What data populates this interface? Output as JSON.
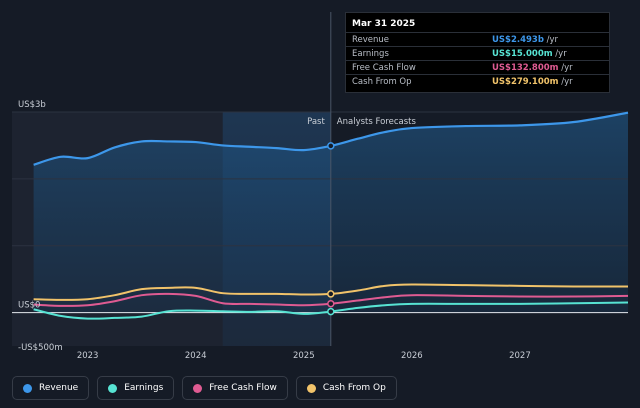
{
  "colors": {
    "background": "#151b26",
    "past_shade": "#1d2330",
    "revenue": "#3d97ea",
    "earnings": "#57e3d3",
    "fcf": "#df5b92",
    "cfo": "#f1c36a"
  },
  "tooltip": {
    "date": "Mar 31 2025",
    "rows": [
      {
        "label": "Revenue",
        "value": "US$2.493b",
        "unit": " /yr",
        "color": "#3d97ea"
      },
      {
        "label": "Earnings",
        "value": "US$15.000m",
        "unit": " /yr",
        "color": "#57e3d3"
      },
      {
        "label": "Free Cash Flow",
        "value": "US$132.800m",
        "unit": " /yr",
        "color": "#df5b92"
      },
      {
        "label": "Cash From Op",
        "value": "US$279.100m",
        "unit": " /yr",
        "color": "#f1c36a"
      }
    ]
  },
  "chart_data": {
    "type": "line",
    "xlim": [
      2022.3,
      2028.0
    ],
    "ylim": [
      -500,
      3000
    ],
    "x_ticks": [
      2023,
      2024,
      2025,
      2026,
      2027
    ],
    "x_tick_labels": [
      "2023",
      "2024",
      "2025",
      "2026",
      "2027"
    ],
    "y_labels": [
      {
        "value": 3000,
        "text": "US$3b"
      },
      {
        "value": 0,
        "text": "US$0"
      },
      {
        "value": -500,
        "text": "-US$500m"
      }
    ],
    "divider_x": 2025.25,
    "divider_labels": {
      "past": "Past",
      "forecast": "Analysts Forecasts"
    },
    "highlight_range": [
      2024.25,
      2025.25
    ],
    "series": [
      {
        "name": "Revenue",
        "key": "revenue",
        "values": [
          [
            2022.5,
            2210
          ],
          [
            2022.75,
            2330
          ],
          [
            2023.0,
            2310
          ],
          [
            2023.25,
            2470
          ],
          [
            2023.5,
            2560
          ],
          [
            2023.75,
            2560
          ],
          [
            2024.0,
            2550
          ],
          [
            2024.25,
            2500
          ],
          [
            2024.5,
            2480
          ],
          [
            2024.75,
            2460
          ],
          [
            2025.0,
            2430
          ],
          [
            2025.25,
            2493
          ],
          [
            2025.5,
            2600
          ],
          [
            2025.75,
            2700
          ],
          [
            2026.0,
            2760
          ],
          [
            2026.5,
            2790
          ],
          [
            2027.0,
            2800
          ],
          [
            2027.5,
            2850
          ],
          [
            2028.0,
            2990
          ]
        ]
      },
      {
        "name": "Earnings",
        "key": "earnings",
        "values": [
          [
            2022.5,
            50
          ],
          [
            2022.75,
            -50
          ],
          [
            2023.0,
            -90
          ],
          [
            2023.25,
            -80
          ],
          [
            2023.5,
            -60
          ],
          [
            2023.75,
            20
          ],
          [
            2024.0,
            30
          ],
          [
            2024.25,
            20
          ],
          [
            2024.5,
            10
          ],
          [
            2024.75,
            20
          ],
          [
            2025.0,
            -20
          ],
          [
            2025.25,
            15
          ],
          [
            2025.5,
            70
          ],
          [
            2025.75,
            110
          ],
          [
            2026.0,
            130
          ],
          [
            2026.5,
            130
          ],
          [
            2027.0,
            130
          ],
          [
            2027.5,
            140
          ],
          [
            2028.0,
            150
          ]
        ]
      },
      {
        "name": "Free Cash Flow",
        "key": "fcf",
        "values": [
          [
            2022.5,
            120
          ],
          [
            2022.75,
            100
          ],
          [
            2023.0,
            110
          ],
          [
            2023.25,
            170
          ],
          [
            2023.5,
            260
          ],
          [
            2023.75,
            280
          ],
          [
            2024.0,
            250
          ],
          [
            2024.25,
            140
          ],
          [
            2024.5,
            130
          ],
          [
            2024.75,
            120
          ],
          [
            2025.0,
            110
          ],
          [
            2025.25,
            132.8
          ],
          [
            2025.5,
            180
          ],
          [
            2025.75,
            230
          ],
          [
            2026.0,
            260
          ],
          [
            2026.5,
            250
          ],
          [
            2027.0,
            240
          ],
          [
            2027.5,
            240
          ],
          [
            2028.0,
            250
          ]
        ]
      },
      {
        "name": "Cash From Op",
        "key": "cfo",
        "values": [
          [
            2022.5,
            200
          ],
          [
            2022.75,
            190
          ],
          [
            2023.0,
            200
          ],
          [
            2023.25,
            260
          ],
          [
            2023.5,
            350
          ],
          [
            2023.75,
            370
          ],
          [
            2024.0,
            370
          ],
          [
            2024.25,
            290
          ],
          [
            2024.5,
            280
          ],
          [
            2024.75,
            280
          ],
          [
            2025.0,
            270
          ],
          [
            2025.25,
            279.1
          ],
          [
            2025.5,
            330
          ],
          [
            2025.75,
            400
          ],
          [
            2026.0,
            420
          ],
          [
            2026.5,
            410
          ],
          [
            2027.0,
            400
          ],
          [
            2027.5,
            390
          ],
          [
            2028.0,
            390
          ]
        ]
      }
    ],
    "grid": true,
    "legend": "bottom-left"
  },
  "legend": [
    {
      "label": "Revenue",
      "color": "#3d97ea"
    },
    {
      "label": "Earnings",
      "color": "#57e3d3"
    },
    {
      "label": "Free Cash Flow",
      "color": "#df5b92"
    },
    {
      "label": "Cash From Op",
      "color": "#f1c36a"
    }
  ]
}
